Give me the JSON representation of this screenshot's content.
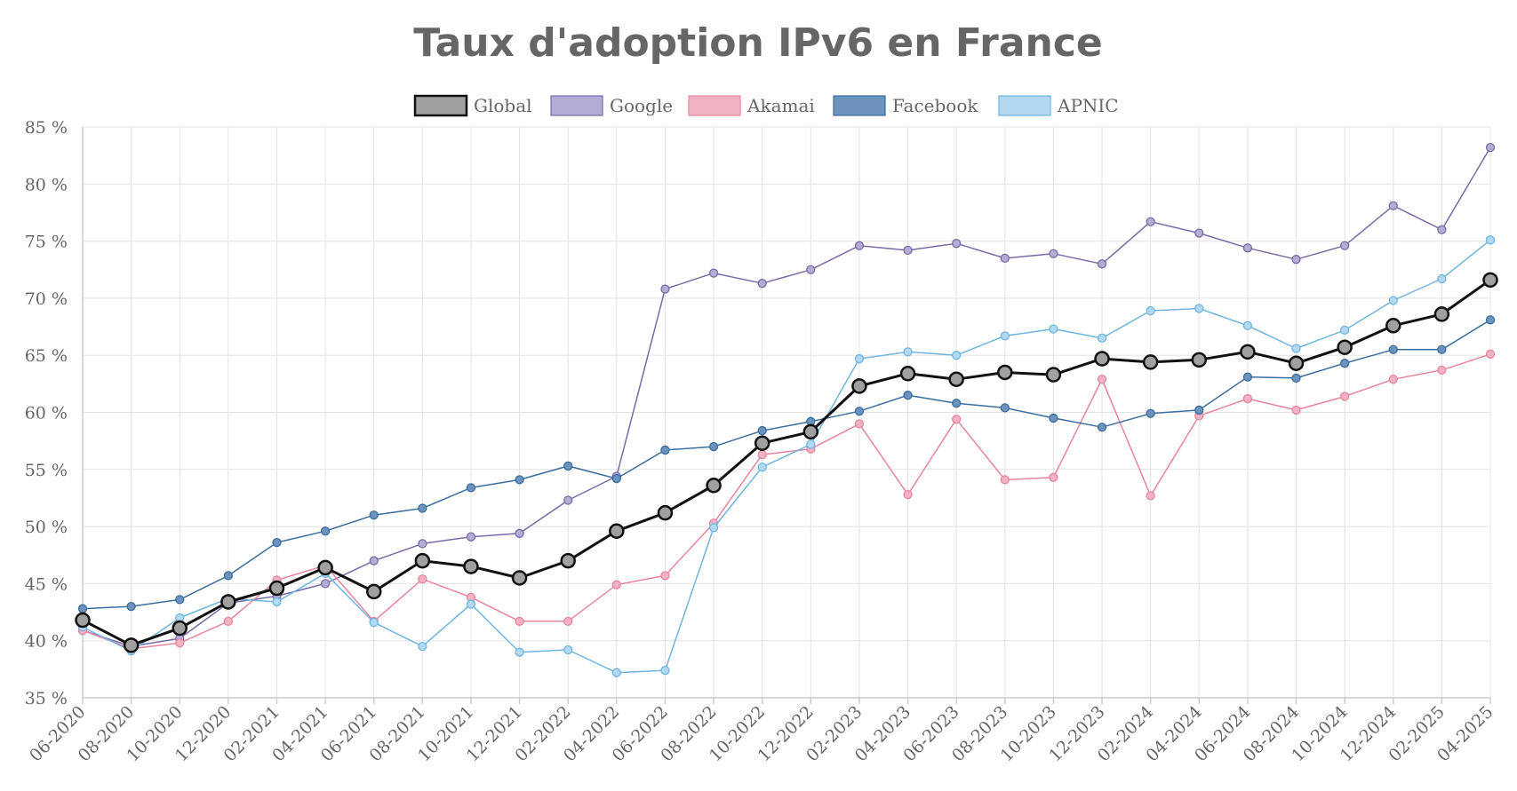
{
  "chart_data": {
    "type": "line",
    "title": "Taux d'adoption IPv6 en France",
    "xlabel": "",
    "ylabel": "",
    "y_tick_suffix": " %",
    "ylim": [
      35,
      85
    ],
    "y_ticks": [
      35,
      40,
      45,
      50,
      55,
      60,
      65,
      70,
      75,
      80,
      85
    ],
    "grid": true,
    "legend_position": "top-center",
    "categories": [
      "06-2020",
      "08-2020",
      "10-2020",
      "12-2020",
      "02-2021",
      "04-2021",
      "06-2021",
      "08-2021",
      "10-2021",
      "12-2021",
      "02-2022",
      "04-2022",
      "06-2022",
      "08-2022",
      "10-2022",
      "12-2022",
      "02-2023",
      "04-2023",
      "06-2023",
      "08-2023",
      "10-2023",
      "12-2023",
      "02-2024",
      "04-2024",
      "06-2024",
      "08-2024",
      "10-2024",
      "12-2024",
      "02-2025",
      "04-2025"
    ],
    "series": [
      {
        "name": "Google",
        "color": "#7b6aa8",
        "fill": "#b3acd4",
        "values": [
          40.9,
          39.5,
          40.2,
          43.3,
          43.9,
          45.0,
          47.0,
          48.5,
          49.1,
          49.4,
          52.3,
          54.4,
          70.8,
          72.2,
          71.3,
          72.5,
          74.6,
          74.2,
          74.8,
          73.5,
          73.9,
          73.0,
          76.7,
          75.7,
          74.4,
          73.4,
          74.6,
          78.1,
          76.0,
          83.2
        ]
      },
      {
        "name": "Akamai",
        "color": "#e8859e",
        "fill": "#f1b3c4",
        "values": [
          40.9,
          39.3,
          39.8,
          41.7,
          45.3,
          46.6,
          41.7,
          45.4,
          43.8,
          41.7,
          41.7,
          44.9,
          45.7,
          50.3,
          56.3,
          56.8,
          59.0,
          52.8,
          59.4,
          54.1,
          54.3,
          62.9,
          52.7,
          59.7,
          61.2,
          60.2,
          61.4,
          62.9,
          63.7,
          65.1
        ]
      },
      {
        "name": "APNIC",
        "color": "#6fb5e0",
        "fill": "#b3d8f2",
        "values": [
          41.2,
          39.1,
          42.0,
          43.7,
          43.4,
          45.9,
          41.6,
          39.5,
          43.2,
          39.0,
          39.2,
          37.2,
          37.4,
          49.9,
          55.2,
          57.2,
          64.7,
          65.3,
          65.0,
          66.7,
          67.3,
          66.5,
          68.9,
          69.1,
          67.6,
          65.6,
          67.2,
          69.8,
          71.7,
          75.1
        ]
      },
      {
        "name": "Facebook",
        "color": "#3a6ea0",
        "fill": "#6b93bd",
        "values": [
          42.8,
          43.0,
          43.6,
          45.7,
          48.6,
          49.6,
          51.0,
          51.6,
          53.4,
          54.1,
          55.3,
          54.2,
          56.7,
          57.0,
          58.4,
          59.2,
          60.1,
          61.5,
          60.8,
          60.4,
          59.5,
          58.7,
          59.9,
          60.2,
          63.1,
          63.0,
          64.3,
          65.5,
          65.5,
          68.1
        ]
      },
      {
        "name": "Global",
        "color": "#111111",
        "fill": "#a0a0a0",
        "values": [
          41.8,
          39.6,
          41.1,
          43.4,
          44.6,
          46.4,
          44.3,
          47.0,
          46.5,
          45.5,
          47.0,
          49.6,
          51.2,
          53.6,
          57.3,
          58.3,
          62.3,
          63.4,
          62.9,
          63.5,
          63.3,
          64.7,
          64.4,
          64.6,
          65.3,
          64.3,
          65.7,
          67.6,
          68.6,
          71.6
        ]
      }
    ],
    "legend_order": [
      "Global",
      "Google",
      "Akamai",
      "Facebook",
      "APNIC"
    ]
  }
}
